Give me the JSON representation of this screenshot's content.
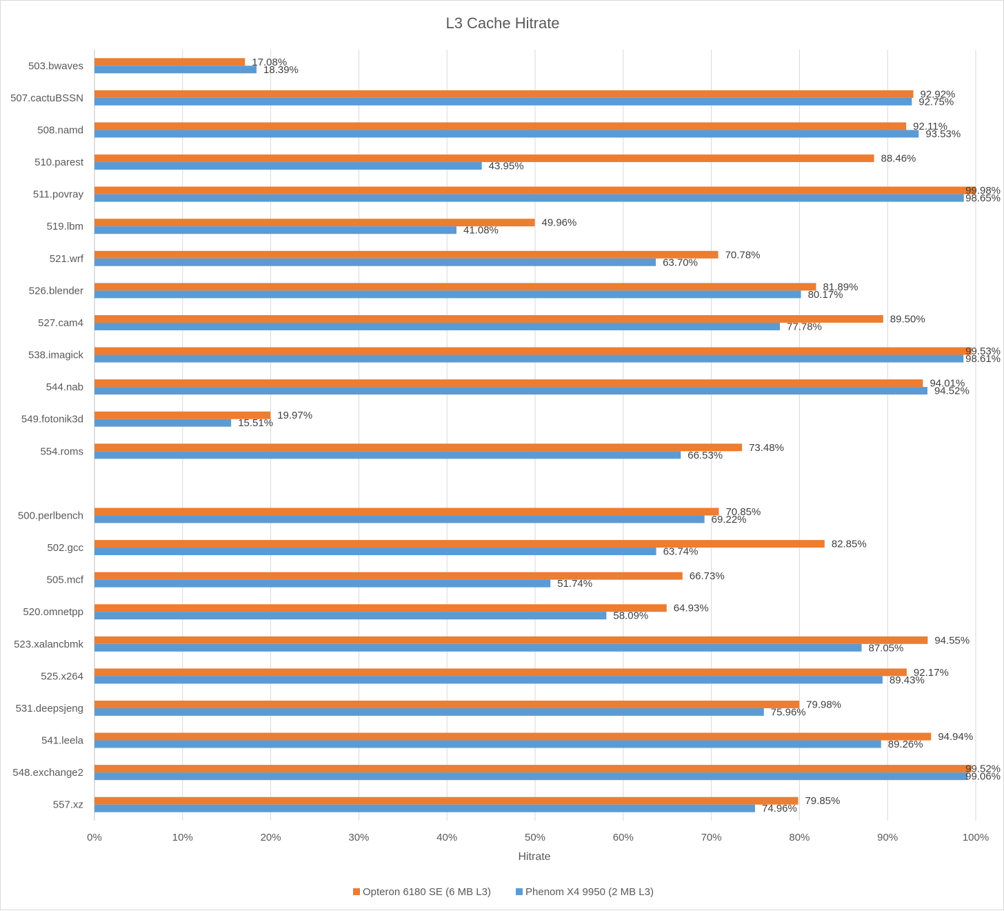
{
  "chart_data": {
    "type": "bar",
    "orientation": "horizontal",
    "title": "L3 Cache Hitrate",
    "xlabel": "Hitrate",
    "ylabel": "",
    "xlim": [
      0,
      100
    ],
    "x_ticks": [
      "0%",
      "10%",
      "20%",
      "30%",
      "40%",
      "50%",
      "60%",
      "70%",
      "80%",
      "90%",
      "100%"
    ],
    "grid": true,
    "legend_position": "bottom",
    "categories": [
      "503.bwaves",
      "507.cactuBSSN",
      "508.namd",
      "510.parest",
      "511.povray",
      "519.lbm",
      "521.wrf",
      "526.blender",
      "527.cam4",
      "538.imagick",
      "544.nab",
      "549.fotonik3d",
      "554.roms",
      "",
      "500.perlbench",
      "502.gcc",
      "505.mcf",
      "520.omnetpp",
      "523.xalancbmk",
      "525.x264",
      "531.deepsjeng",
      "541.leela",
      "548.exchange2",
      "557.xz"
    ],
    "series": [
      {
        "name": "Opteron 6180 SE (6 MB L3)",
        "color": "#ED7D31",
        "values": [
          17.08,
          92.92,
          92.11,
          88.46,
          99.98,
          49.96,
          70.78,
          81.89,
          89.5,
          99.53,
          94.01,
          19.97,
          73.48,
          null,
          70.85,
          82.85,
          66.73,
          64.93,
          94.55,
          92.17,
          79.98,
          94.94,
          99.52,
          79.85
        ],
        "labels": [
          "17.08%",
          "92.92%",
          "92.11%",
          "88.46%",
          "99.98%",
          "49.96%",
          "70.78%",
          "81.89%",
          "89.50%",
          "99.53%",
          "94.01%",
          "19.97%",
          "73.48%",
          "",
          "70.85%",
          "82.85%",
          "66.73%",
          "64.93%",
          "94.55%",
          "92.17%",
          "79.98%",
          "94.94%",
          "99.52%",
          "79.85%"
        ]
      },
      {
        "name": "Phenom X4 9950 (2 MB L3)",
        "color": "#5B9BD5",
        "values": [
          18.39,
          92.75,
          93.53,
          43.95,
          98.65,
          41.08,
          63.7,
          80.17,
          77.78,
          98.61,
          94.52,
          15.51,
          66.53,
          null,
          69.22,
          63.74,
          51.74,
          58.09,
          87.05,
          89.43,
          75.96,
          89.26,
          99.06,
          74.96
        ],
        "labels": [
          "18.39%",
          "92.75%",
          "93.53%",
          "43.95%",
          "98.65%",
          "41.08%",
          "63.70%",
          "80.17%",
          "77.78%",
          "98.61%",
          "94.52%",
          "15.51%",
          "66.53%",
          "",
          "69.22%",
          "63.74%",
          "51.74%",
          "58.09%",
          "87.05%",
          "89.43%",
          "75.96%",
          "89.26%",
          "99.06%",
          "74.96%"
        ]
      }
    ]
  }
}
